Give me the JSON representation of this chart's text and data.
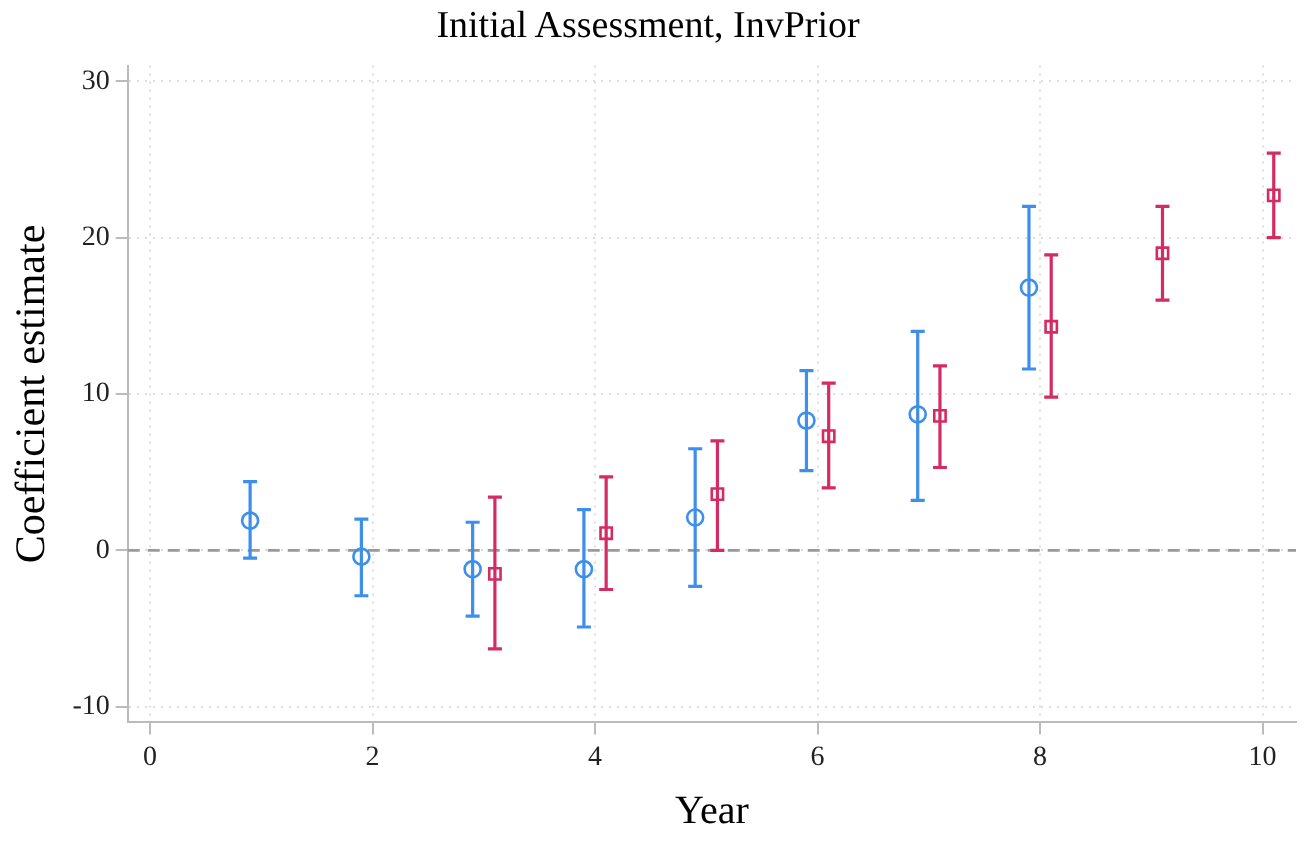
{
  "chart_data": {
    "type": "scatter",
    "title": "Initial Assessment, InvPrior",
    "xlabel": "Year",
    "ylabel": "Coefficient estimate",
    "xlim": [
      -0.2,
      10.3
    ],
    "xticks": [
      0,
      2,
      4,
      6,
      8,
      10
    ],
    "ylim": [
      -11,
      31
    ],
    "yticks": [
      -10,
      0,
      10,
      20,
      30
    ],
    "grid": true,
    "legend": false,
    "ref_lines": [
      {
        "axis": "y",
        "value": 0,
        "color": "#999999",
        "line_style": "dashed"
      }
    ],
    "series": [
      {
        "color": "#3d8fea",
        "marker": "circle",
        "x": [
          0.9,
          1.9,
          2.9,
          3.9,
          4.9,
          5.9,
          6.9,
          7.9
        ],
        "values": [
          1.9,
          -0.4,
          -1.2,
          -1.2,
          2.1,
          8.3,
          8.7,
          16.8
        ],
        "errors": [
          [
            -0.5,
            4.4
          ],
          [
            -2.9,
            2.0
          ],
          [
            -4.2,
            1.8
          ],
          [
            -4.9,
            2.6
          ],
          [
            -2.3,
            6.5
          ],
          [
            5.1,
            11.5
          ],
          [
            3.2,
            14.0
          ],
          [
            11.6,
            22.0
          ]
        ]
      },
      {
        "color": "#d42c62",
        "marker": "square",
        "x": [
          3.1,
          4.1,
          5.1,
          6.1,
          7.1,
          8.1,
          9.1,
          10.1
        ],
        "values": [
          -1.5,
          1.1,
          3.6,
          7.3,
          8.6,
          14.3,
          19.0,
          22.7
        ],
        "errors": [
          [
            -6.3,
            3.4
          ],
          [
            -2.5,
            4.7
          ],
          [
            0.0,
            7.0
          ],
          [
            4.0,
            10.7
          ],
          [
            5.3,
            11.8
          ],
          [
            9.8,
            18.9
          ],
          [
            16.0,
            22.0
          ],
          [
            20.0,
            25.4
          ]
        ]
      }
    ]
  }
}
